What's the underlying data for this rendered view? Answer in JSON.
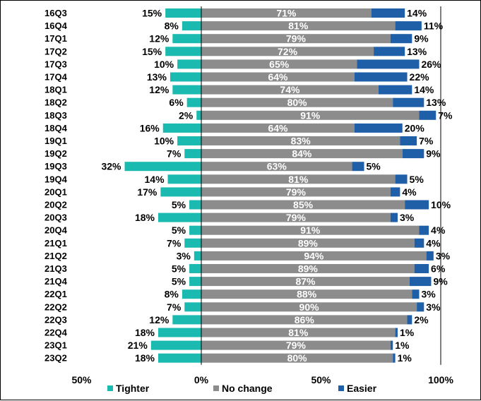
{
  "chart_data": {
    "type": "bar",
    "orientation": "horizontal",
    "stacked": true,
    "categories": [
      "16Q3",
      "16Q4",
      "17Q1",
      "17Q2",
      "17Q3",
      "17Q4",
      "18Q1",
      "18Q2",
      "18Q3",
      "18Q4",
      "19Q1",
      "19Q2",
      "19Q3",
      "19Q4",
      "20Q1",
      "20Q2",
      "20Q3",
      "20Q4",
      "21Q1",
      "21Q2",
      "21Q3",
      "21Q4",
      "22Q1",
      "22Q2",
      "22Q3",
      "22Q4",
      "23Q1",
      "23Q2"
    ],
    "series": [
      {
        "name": "Tighter",
        "color": "#1ABAB0",
        "direction": "negative",
        "values": [
          15,
          8,
          12,
          15,
          10,
          13,
          12,
          6,
          2,
          16,
          10,
          7,
          32,
          14,
          17,
          5,
          18,
          5,
          7,
          3,
          5,
          5,
          8,
          7,
          12,
          18,
          21,
          18
        ]
      },
      {
        "name": "No change",
        "color": "#8C8C8C",
        "direction": "positive",
        "values": [
          71,
          81,
          79,
          72,
          65,
          64,
          74,
          80,
          91,
          64,
          83,
          84,
          63,
          81,
          79,
          85,
          79,
          91,
          89,
          94,
          89,
          87,
          88,
          90,
          86,
          81,
          79,
          80
        ]
      },
      {
        "name": "Easier",
        "color": "#1F5FA8",
        "direction": "positive",
        "values": [
          14,
          11,
          9,
          13,
          26,
          22,
          14,
          13,
          7,
          20,
          7,
          9,
          5,
          5,
          4,
          10,
          3,
          4,
          4,
          3,
          6,
          9,
          3,
          3,
          2,
          1,
          1,
          1
        ]
      }
    ],
    "x_ticks": [
      "50%",
      "0%",
      "50%",
      "100%"
    ],
    "xlim": [
      -50,
      100
    ],
    "legend_position": "bottom",
    "value_suffix": "%"
  }
}
